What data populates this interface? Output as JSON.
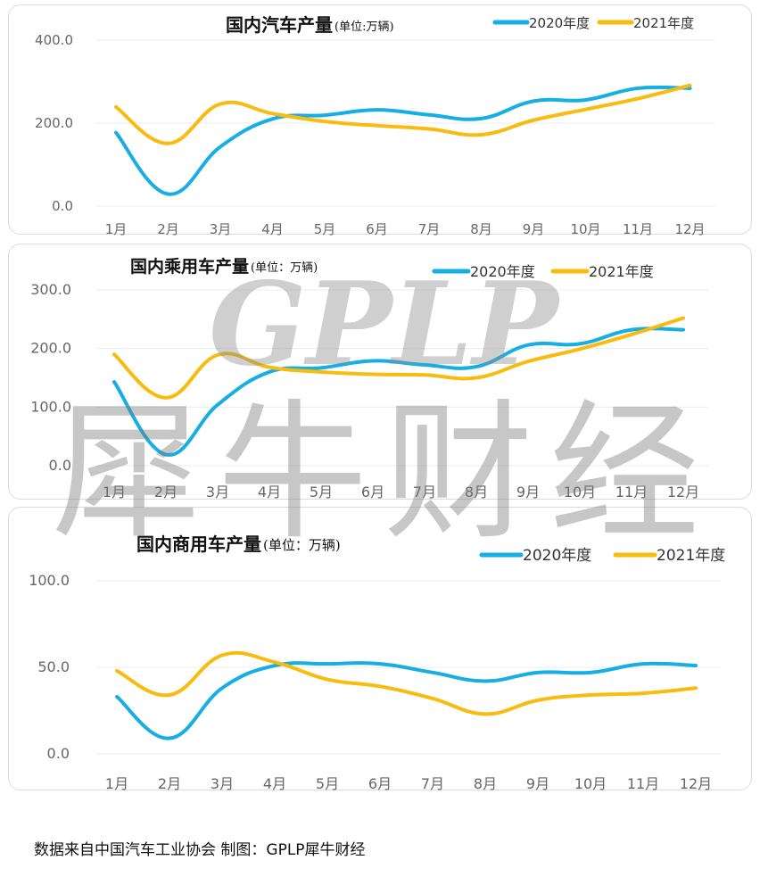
{
  "source_note": "数据来自中国汽车工业协会  制图：GPLP犀牛财经",
  "watermark": {
    "latin": "GPLP",
    "chinese": "犀牛财经"
  },
  "colors": {
    "series_2020": "#16aee3",
    "series_2021": "#f8bb0f",
    "grid": "#ececec"
  },
  "chart_data": [
    {
      "type": "line",
      "title": "国内汽车产量",
      "unit_label": "(单位:万辆)",
      "categories": [
        "1月",
        "2月",
        "3月",
        "4月",
        "5月",
        "6月",
        "7月",
        "8月",
        "9月",
        "10月",
        "11月",
        "12月"
      ],
      "y_ticks": [
        "0.0",
        "200.0",
        "400.0"
      ],
      "ylim": [
        0,
        400
      ],
      "legend_position": "top-right",
      "series": [
        {
          "name": "2020年度",
          "values": [
            177,
            29,
            143,
            210,
            219,
            232,
            220,
            211,
            253,
            256,
            284,
            284
          ]
        },
        {
          "name": "2021年度",
          "values": [
            239,
            151,
            246,
            223,
            204,
            194,
            186,
            172,
            207,
            233,
            259,
            291
          ]
        }
      ]
    },
    {
      "type": "line",
      "title": "国内乘用车产量",
      "unit_label": "(单位：万辆)",
      "categories": [
        "1月",
        "2月",
        "3月",
        "4月",
        "5月",
        "6月",
        "7月",
        "8月",
        "9月",
        "10月",
        "11月",
        "12月"
      ],
      "y_ticks": [
        "0.0",
        "100.0",
        "200.0",
        "300.0"
      ],
      "ylim": [
        0,
        300
      ],
      "legend_position": "top-center",
      "series": [
        {
          "name": "2020年度",
          "values": [
            143,
            19,
            104,
            160,
            167,
            179,
            172,
            169,
            206,
            208,
            232,
            232
          ]
        },
        {
          "name": "2021年度",
          "values": [
            190,
            116,
            189,
            168,
            160,
            156,
            155,
            150,
            178,
            199,
            224,
            252
          ]
        }
      ]
    },
    {
      "type": "line",
      "title": "国内商用车产量",
      "unit_label": "(单位：万辆)",
      "categories": [
        "1月",
        "2月",
        "3月",
        "4月",
        "5月",
        "6月",
        "7月",
        "8月",
        "9月",
        "10月",
        "11月",
        "12月"
      ],
      "y_ticks": [
        "0.0",
        "50.0",
        "100.0"
      ],
      "ylim": [
        0,
        100
      ],
      "legend_position": "top-right",
      "series": [
        {
          "name": "2020年度",
          "values": [
            33,
            9,
            38,
            51,
            52,
            52,
            47,
            42,
            47,
            47,
            52,
            51
          ]
        },
        {
          "name": "2021年度",
          "values": [
            48,
            34,
            57,
            53,
            43,
            39,
            32,
            23,
            31,
            34,
            35,
            38
          ]
        }
      ]
    }
  ]
}
